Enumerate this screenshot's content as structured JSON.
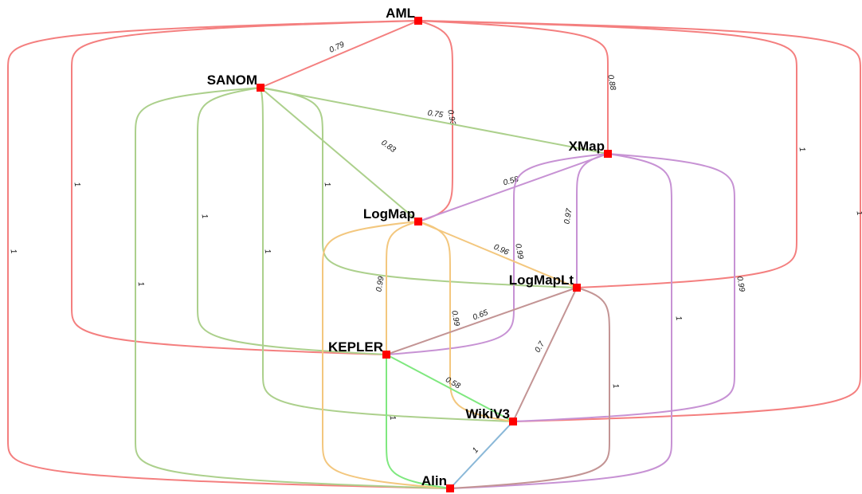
{
  "nodes": [
    {
      "label": "AML"
    },
    {
      "label": "SANOM"
    },
    {
      "label": "XMap"
    },
    {
      "label": "LogMap"
    },
    {
      "label": "LogMapLt"
    },
    {
      "label": "KEPLER"
    },
    {
      "label": "WikiV3"
    },
    {
      "label": "Alin"
    }
  ],
  "edges": [
    {
      "source": 0,
      "target": 1,
      "weight": "0.79"
    },
    {
      "source": 0,
      "target": 3,
      "weight": "0.93"
    },
    {
      "source": 0,
      "target": 2,
      "weight": "0.88"
    },
    {
      "source": 0,
      "target": 4,
      "weight": "1"
    },
    {
      "source": 0,
      "target": 6,
      "weight": "1"
    },
    {
      "source": 0,
      "target": 5,
      "weight": "1"
    },
    {
      "source": 0,
      "target": 7,
      "weight": "1"
    },
    {
      "source": 1,
      "target": 2,
      "weight": "0.75"
    },
    {
      "source": 1,
      "target": 3,
      "weight": "0.83"
    },
    {
      "source": 1,
      "target": 4,
      "weight": "1"
    },
    {
      "source": 1,
      "target": 5,
      "weight": "1"
    },
    {
      "source": 1,
      "target": 6,
      "weight": "1"
    },
    {
      "source": 1,
      "target": 7,
      "weight": "1"
    },
    {
      "source": 2,
      "target": 3,
      "weight": "0.58"
    },
    {
      "source": 2,
      "target": 4,
      "weight": "0.97"
    },
    {
      "source": 2,
      "target": 5,
      "weight": "0.99"
    },
    {
      "source": 2,
      "target": 6,
      "weight": "0.99"
    },
    {
      "source": 2,
      "target": 7,
      "weight": "1"
    },
    {
      "source": 3,
      "target": 4,
      "weight": "0.96"
    },
    {
      "source": 3,
      "target": 5,
      "weight": "0.99"
    },
    {
      "source": 3,
      "target": 6,
      "weight": "0.99"
    },
    {
      "source": 3,
      "target": 7
    },
    {
      "source": 4,
      "target": 5,
      "weight": "0.65"
    },
    {
      "source": 4,
      "target": 6,
      "weight": "0.7"
    },
    {
      "source": 4,
      "target": 7,
      "weight": "1"
    },
    {
      "source": 5,
      "target": 6,
      "weight": "0.58"
    },
    {
      "source": 5,
      "target": 7,
      "weight": "1"
    },
    {
      "source": 6,
      "target": 7,
      "weight": "1"
    }
  ]
}
